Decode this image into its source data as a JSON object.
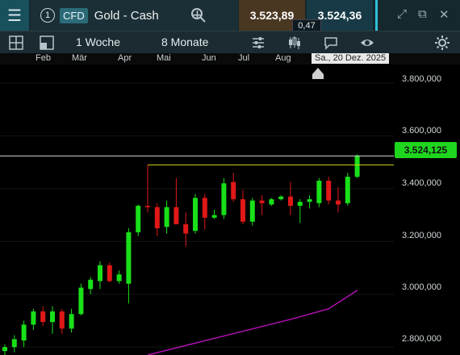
{
  "header": {
    "instrument_number": "1",
    "badge": "CFD",
    "instrument_name": "Gold - Cash",
    "bid": "3.523,89",
    "ask": "3.524,36",
    "spread": "0,47"
  },
  "toolbar": {
    "timeframe": "1 Woche",
    "range": "8 Monate"
  },
  "axis": {
    "months": [
      "Feb",
      "Mär",
      "Apr",
      "Mai",
      "Jun",
      "Jul",
      "Aug"
    ],
    "crosshair_date": "Sa., 20 Dez. 2025",
    "price_labels": [
      "3.800,000",
      "3.600,000",
      "3.400,000",
      "3.200,000",
      "3.000,000",
      "2.800,000"
    ],
    "current_price_label": "3.524,125"
  },
  "colors": {
    "up": "#19e019",
    "down": "#e01818",
    "moving_average": "#b010b0",
    "resistance_line": "#d6d61a"
  },
  "chart_data": {
    "type": "candlestick",
    "ylim": [
      2770,
      3870
    ],
    "current_price": 3524.125,
    "horizontal_line": 3490,
    "candles": [
      {
        "o": 2785,
        "h": 2810,
        "l": 2755,
        "c": 2800
      },
      {
        "o": 2800,
        "h": 2845,
        "l": 2780,
        "c": 2830
      },
      {
        "o": 2825,
        "h": 2900,
        "l": 2800,
        "c": 2885
      },
      {
        "o": 2885,
        "h": 2945,
        "l": 2865,
        "c": 2935
      },
      {
        "o": 2935,
        "h": 2955,
        "l": 2880,
        "c": 2895
      },
      {
        "o": 2895,
        "h": 2955,
        "l": 2850,
        "c": 2935
      },
      {
        "o": 2935,
        "h": 2945,
        "l": 2850,
        "c": 2870
      },
      {
        "o": 2870,
        "h": 2945,
        "l": 2855,
        "c": 2925
      },
      {
        "o": 2925,
        "h": 3040,
        "l": 2920,
        "c": 3025
      },
      {
        "o": 3020,
        "h": 3065,
        "l": 3000,
        "c": 3055
      },
      {
        "o": 3050,
        "h": 3125,
        "l": 3020,
        "c": 3110
      },
      {
        "o": 3110,
        "h": 3120,
        "l": 3045,
        "c": 3050
      },
      {
        "o": 3050,
        "h": 3090,
        "l": 3040,
        "c": 3075
      },
      {
        "o": 3040,
        "h": 3250,
        "l": 2965,
        "c": 3235
      },
      {
        "o": 3235,
        "h": 3340,
        "l": 3220,
        "c": 3335
      },
      {
        "o": 3335,
        "h": 3490,
        "l": 3310,
        "c": 3330
      },
      {
        "o": 3330,
        "h": 3345,
        "l": 3220,
        "c": 3250
      },
      {
        "o": 3255,
        "h": 3355,
        "l": 3230,
        "c": 3330
      },
      {
        "o": 3330,
        "h": 3440,
        "l": 3265,
        "c": 3265
      },
      {
        "o": 3265,
        "h": 3310,
        "l": 3180,
        "c": 3230
      },
      {
        "o": 3240,
        "h": 3380,
        "l": 3230,
        "c": 3365
      },
      {
        "o": 3365,
        "h": 3380,
        "l": 3245,
        "c": 3290
      },
      {
        "o": 3290,
        "h": 3320,
        "l": 3285,
        "c": 3300
      },
      {
        "o": 3300,
        "h": 3440,
        "l": 3285,
        "c": 3420
      },
      {
        "o": 3425,
        "h": 3460,
        "l": 3350,
        "c": 3360
      },
      {
        "o": 3360,
        "h": 3395,
        "l": 3265,
        "c": 3275
      },
      {
        "o": 3275,
        "h": 3365,
        "l": 3260,
        "c": 3355
      },
      {
        "o": 3355,
        "h": 3375,
        "l": 3300,
        "c": 3345
      },
      {
        "o": 3340,
        "h": 3365,
        "l": 3335,
        "c": 3360
      },
      {
        "o": 3360,
        "h": 3375,
        "l": 3355,
        "c": 3370
      },
      {
        "o": 3370,
        "h": 3425,
        "l": 3300,
        "c": 3335
      },
      {
        "o": 3335,
        "h": 3360,
        "l": 3270,
        "c": 3350
      },
      {
        "o": 3350,
        "h": 3375,
        "l": 3325,
        "c": 3360
      },
      {
        "o": 3345,
        "h": 3440,
        "l": 3330,
        "c": 3430
      },
      {
        "o": 3430,
        "h": 3445,
        "l": 3340,
        "c": 3355
      },
      {
        "o": 3355,
        "h": 3405,
        "l": 3310,
        "c": 3340
      },
      {
        "o": 3345,
        "h": 3460,
        "l": 3335,
        "c": 3445
      },
      {
        "o": 3445,
        "h": 3530,
        "l": 3440,
        "c": 3525
      }
    ],
    "moving_average": [
      {
        "i": 15,
        "v": 2770
      },
      {
        "i": 20,
        "v": 2815
      },
      {
        "i": 25,
        "v": 2860
      },
      {
        "i": 30,
        "v": 2905
      },
      {
        "i": 34,
        "v": 2945
      },
      {
        "i": 37,
        "v": 3015
      }
    ]
  }
}
